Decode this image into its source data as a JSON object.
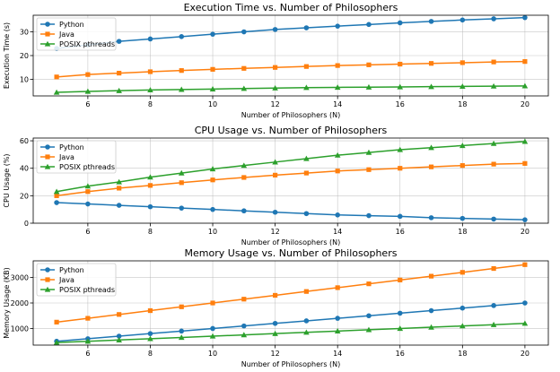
{
  "chart_data": [
    {
      "type": "line",
      "title": "Execution Time vs. Number of Philosophers",
      "xlabel": "Number of Philosophers (N)",
      "ylabel": "Execution Time (s)",
      "xlim": [
        4.25,
        20.75
      ],
      "ylim": [
        3,
        37
      ],
      "xticks": [
        6,
        8,
        10,
        12,
        14,
        16,
        18,
        20
      ],
      "yticks": [
        10,
        20,
        30
      ],
      "grid": true,
      "legend_position": "top-left",
      "x": [
        5,
        6,
        7,
        8,
        9,
        10,
        11,
        12,
        13,
        14,
        15,
        16,
        17,
        18,
        19,
        20
      ],
      "series": [
        {
          "name": "Python",
          "color": "#1f77b4",
          "marker": "circle",
          "values": [
            23,
            24.5,
            26,
            27,
            28,
            29,
            30,
            31,
            31.7,
            32.4,
            33.1,
            33.8,
            34.4,
            35,
            35.5,
            36
          ]
        },
        {
          "name": "Java",
          "color": "#ff7f0e",
          "marker": "square",
          "values": [
            11,
            12,
            12.6,
            13.2,
            13.7,
            14.2,
            14.6,
            15,
            15.4,
            15.8,
            16.1,
            16.4,
            16.7,
            17,
            17.3,
            17.5
          ]
        },
        {
          "name": "POSIX pthreads",
          "color": "#2ca02c",
          "marker": "triangle",
          "values": [
            4.5,
            4.9,
            5.2,
            5.5,
            5.7,
            5.9,
            6.1,
            6.3,
            6.5,
            6.6,
            6.7,
            6.8,
            6.9,
            7,
            7.1,
            7.2
          ]
        }
      ]
    },
    {
      "type": "line",
      "title": "CPU Usage vs. Number of Philosophers",
      "xlabel": "Number of Philosophers (N)",
      "ylabel": "CPU Usage (%)",
      "xlim": [
        4.25,
        20.75
      ],
      "ylim": [
        0,
        62
      ],
      "xticks": [
        6,
        8,
        10,
        12,
        14,
        16,
        18,
        20
      ],
      "yticks": [
        0,
        20,
        40,
        60
      ],
      "grid": true,
      "legend_position": "top-left",
      "x": [
        5,
        6,
        7,
        8,
        9,
        10,
        11,
        12,
        13,
        14,
        15,
        16,
        17,
        18,
        19,
        20
      ],
      "series": [
        {
          "name": "Python",
          "color": "#1f77b4",
          "marker": "circle",
          "values": [
            15,
            14,
            13,
            12,
            11,
            10,
            9,
            8,
            7,
            6,
            5.5,
            5,
            4,
            3.5,
            3,
            2.5
          ]
        },
        {
          "name": "Java",
          "color": "#ff7f0e",
          "marker": "square",
          "values": [
            20,
            23,
            25.5,
            27.5,
            29.5,
            31.5,
            33.3,
            35,
            36.5,
            38,
            39,
            40,
            41,
            42,
            43,
            43.5
          ]
        },
        {
          "name": "POSIX pthreads",
          "color": "#2ca02c",
          "marker": "triangle",
          "values": [
            23,
            27,
            30,
            33.5,
            36.5,
            39.5,
            42,
            44.5,
            47,
            49.5,
            51.5,
            53.5,
            55,
            56.5,
            58,
            59.5
          ]
        }
      ]
    },
    {
      "type": "line",
      "title": "Memory Usage vs. Number of Philosophers",
      "xlabel": "Number of Philosophers (N)",
      "ylabel": "Memory Usage (KB)",
      "xlim": [
        4.25,
        20.75
      ],
      "ylim": [
        350,
        3650
      ],
      "xticks": [
        6,
        8,
        10,
        12,
        14,
        16,
        18,
        20
      ],
      "yticks": [
        1000,
        2000,
        3000
      ],
      "grid": true,
      "legend_position": "top-left",
      "x": [
        5,
        6,
        7,
        8,
        9,
        10,
        11,
        12,
        13,
        14,
        15,
        16,
        17,
        18,
        19,
        20
      ],
      "series": [
        {
          "name": "Python",
          "color": "#1f77b4",
          "marker": "circle",
          "values": [
            500,
            600,
            700,
            800,
            900,
            1000,
            1100,
            1200,
            1300,
            1400,
            1500,
            1600,
            1700,
            1800,
            1900,
            2000
          ]
        },
        {
          "name": "Java",
          "color": "#ff7f0e",
          "marker": "square",
          "values": [
            1250,
            1400,
            1550,
            1700,
            1850,
            2000,
            2150,
            2300,
            2450,
            2600,
            2750,
            2900,
            3050,
            3200,
            3350,
            3500
          ]
        },
        {
          "name": "POSIX pthreads",
          "color": "#2ca02c",
          "marker": "triangle",
          "values": [
            450,
            500,
            550,
            600,
            650,
            700,
            750,
            800,
            850,
            900,
            950,
            1000,
            1050,
            1100,
            1150,
            1200
          ]
        }
      ]
    }
  ]
}
